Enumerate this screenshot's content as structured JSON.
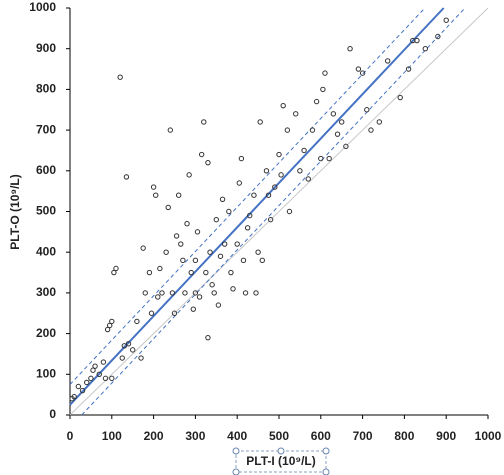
{
  "chart_data": {
    "type": "scatter",
    "xlabel": "PLT-I (10⁹/L)",
    "ylabel": "PLT-O (10⁹/L)",
    "xlim": [
      0,
      1000
    ],
    "ylim": [
      0,
      1000
    ],
    "xticks": [
      0,
      100,
      200,
      300,
      400,
      500,
      600,
      700,
      800,
      900,
      1000
    ],
    "yticks": [
      0,
      100,
      200,
      300,
      400,
      500,
      600,
      700,
      800,
      900,
      1000
    ],
    "marker_color": "#333333",
    "x": [
      5,
      10,
      20,
      30,
      40,
      50,
      55,
      60,
      70,
      80,
      85,
      90,
      95,
      100,
      100,
      105,
      110,
      120,
      125,
      130,
      135,
      140,
      150,
      160,
      170,
      175,
      180,
      190,
      195,
      200,
      205,
      210,
      215,
      220,
      230,
      235,
      240,
      245,
      250,
      255,
      260,
      265,
      270,
      275,
      280,
      285,
      290,
      295,
      300,
      300,
      305,
      310,
      315,
      320,
      325,
      330,
      330,
      335,
      340,
      345,
      350,
      355,
      360,
      365,
      370,
      380,
      385,
      390,
      400,
      405,
      410,
      415,
      420,
      425,
      430,
      440,
      445,
      450,
      455,
      460,
      470,
      475,
      480,
      490,
      500,
      505,
      510,
      520,
      525,
      540,
      550,
      560,
      570,
      580,
      590,
      600,
      605,
      610,
      620,
      630,
      640,
      650,
      660,
      670,
      690,
      700,
      710,
      720,
      740,
      760,
      790,
      810,
      820,
      830,
      850,
      880,
      900
    ],
    "y": [
      40,
      45,
      70,
      60,
      80,
      90,
      110,
      120,
      100,
      130,
      90,
      210,
      220,
      90,
      230,
      350,
      360,
      830,
      140,
      170,
      585,
      175,
      160,
      230,
      140,
      410,
      300,
      350,
      250,
      560,
      540,
      290,
      360,
      300,
      400,
      510,
      700,
      300,
      250,
      440,
      540,
      420,
      380,
      300,
      470,
      590,
      350,
      260,
      380,
      300,
      450,
      290,
      640,
      720,
      350,
      620,
      190,
      400,
      320,
      300,
      480,
      270,
      390,
      530,
      420,
      500,
      350,
      310,
      420,
      570,
      630,
      380,
      300,
      460,
      490,
      540,
      300,
      400,
      720,
      380,
      600,
      540,
      480,
      560,
      640,
      590,
      760,
      700,
      500,
      740,
      600,
      650,
      580,
      700,
      770,
      630,
      800,
      840,
      630,
      740,
      690,
      720,
      660,
      900,
      850,
      840,
      750,
      700,
      720,
      870,
      780,
      850,
      920,
      920,
      900,
      930,
      970
    ],
    "lines": [
      {
        "color": "#c8c8c8",
        "dash": false,
        "width": 1,
        "x": [
          0,
          1000
        ],
        "y": [
          0,
          1000
        ]
      },
      {
        "color": "#4472c4",
        "dash": true,
        "width": 1,
        "x": [
          0,
          849
        ],
        "y": [
          75,
          1000
        ]
      },
      {
        "color": "#4472c4",
        "dash": true,
        "width": 1,
        "x": [
          28,
          945
        ],
        "y": [
          0,
          1000
        ]
      },
      {
        "color": "#4472c4",
        "dash": false,
        "width": 2,
        "x": [
          0,
          894
        ],
        "y": [
          25,
          1000
        ]
      }
    ]
  }
}
